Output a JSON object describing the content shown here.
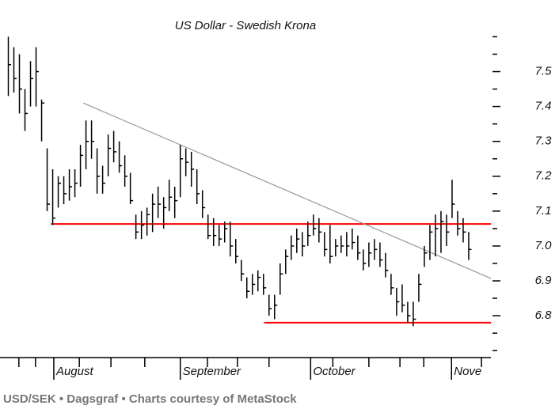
{
  "chart_data": {
    "type": "hlc",
    "title": "US Dollar - Swedish Krona",
    "caption": "USD/SEK • Dagsgraf • Charts courtesy of MetaStock",
    "color": "#000000",
    "xlim": [
      -1.5,
      87
    ],
    "ylim": [
      6.68,
      7.66
    ],
    "yticks": [
      6.8,
      6.9,
      {
        "value": 7,
        "label": "7.0"
      },
      7.1,
      7.2,
      7.3,
      7.4,
      7.5
    ],
    "yticks_minor": [
      6.7,
      6.75,
      6.85,
      6.95,
      7.05,
      7.15,
      7.25,
      7.35,
      7.45,
      7.55,
      7.6
    ],
    "xticks": [
      {
        "value": 8.2,
        "label": "August"
      },
      {
        "value": 31,
        "label": "September"
      },
      {
        "value": 54.5,
        "label": "October"
      },
      {
        "value": 79.9,
        "label": "Nove"
      }
    ],
    "xticks_minor": [
      1.9,
      4.9,
      12.8,
      18.5,
      24.6,
      35.9,
      41.3,
      47.0,
      58.5,
      65.0,
      70.6,
      74.9,
      85.3
    ],
    "high": [
      7.6,
      7.57,
      7.55,
      7.45,
      7.53,
      7.57,
      7.42,
      7.28,
      7.22,
      7.2,
      7.2,
      7.22,
      7.22,
      7.29,
      7.36,
      7.36,
      7.28,
      7.23,
      7.32,
      7.33,
      7.3,
      7.26,
      7.21,
      7.09,
      7.1,
      7.11,
      7.15,
      7.17,
      7.14,
      7.19,
      7.17,
      7.29,
      7.28,
      7.27,
      7.22,
      7.16,
      7.09,
      7.08,
      7.06,
      7.07,
      7.07,
      7.02,
      6.96,
      6.91,
      6.92,
      6.93,
      6.92,
      6.86,
      6.86,
      6.95,
      6.99,
      7.03,
      7.05,
      7.04,
      7.07,
      7.09,
      7.08,
      7.04,
      7.06,
      7.02,
      7.03,
      7.04,
      7.05,
      7.03,
      6.99,
      7.01,
      7.02,
      7.01,
      6.98,
      6.92,
      6.88,
      6.89,
      6.84,
      6.84,
      6.92,
      7.0,
      7.06,
      7.09,
      7.1,
      7.09,
      7.19,
      7.1,
      7.08,
      7.04
    ],
    "low": [
      7.43,
      7.44,
      7.38,
      7.33,
      7.4,
      7.4,
      7.3,
      7.1,
      7.06,
      7.11,
      7.12,
      7.13,
      7.14,
      7.17,
      7.22,
      7.25,
      7.15,
      7.15,
      7.2,
      7.24,
      7.21,
      7.17,
      7.12,
      7.02,
      7.02,
      7.03,
      7.04,
      7.08,
      7.05,
      7.1,
      7.08,
      7.14,
      7.2,
      7.17,
      7.12,
      7.08,
      7.02,
      7.0,
      7.0,
      7.01,
      6.97,
      6.95,
      6.9,
      6.85,
      6.86,
      6.87,
      6.86,
      6.8,
      6.79,
      6.86,
      6.92,
      6.96,
      6.98,
      6.97,
      7.0,
      7.03,
      7.01,
      6.97,
      6.95,
      6.97,
      6.98,
      6.97,
      6.99,
      6.96,
      6.93,
      6.94,
      6.96,
      6.94,
      6.91,
      6.86,
      6.8,
      6.81,
      6.78,
      6.77,
      6.84,
      6.94,
      6.96,
      6.97,
      6.98,
      7.0,
      7.08,
      7.03,
      7.01,
      6.96
    ],
    "close": [
      7.52,
      7.48,
      7.45,
      7.38,
      7.48,
      7.5,
      7.41,
      7.12,
      7.08,
      7.18,
      7.15,
      7.17,
      7.18,
      7.26,
      7.3,
      7.3,
      7.2,
      7.18,
      7.28,
      7.27,
      7.23,
      7.2,
      7.13,
      7.04,
      7.06,
      7.09,
      7.12,
      7.12,
      7.11,
      7.14,
      7.13,
      7.25,
      7.24,
      7.22,
      7.15,
      7.11,
      7.03,
      7.03,
      7.02,
      7.05,
      7.0,
      6.97,
      6.92,
      6.87,
      6.89,
      6.91,
      6.88,
      6.82,
      6.83,
      6.92,
      6.97,
      7.0,
      7.02,
      7.0,
      7.03,
      7.05,
      7.04,
      6.99,
      6.97,
      7.0,
      7.0,
      7.0,
      7.01,
      6.98,
      6.95,
      6.98,
      6.99,
      6.96,
      6.93,
      6.88,
      6.84,
      6.83,
      6.8,
      6.79,
      6.89,
      6.98,
      7.04,
      7.05,
      7.07,
      7.04,
      7.12,
      7.05,
      7.04,
      6.99
    ],
    "lines": [
      {
        "color": "#ff0000",
        "x": [
          7.7,
          87
        ],
        "y": [
          7.063,
          7.063
        ]
      },
      {
        "color": "#ff0000",
        "x": [
          46.1,
          87
        ],
        "y": [
          6.78,
          6.78
        ]
      },
      {
        "color": "#999999",
        "x": [
          13.5,
          87
        ],
        "y": [
          7.41,
          6.907
        ]
      }
    ]
  }
}
